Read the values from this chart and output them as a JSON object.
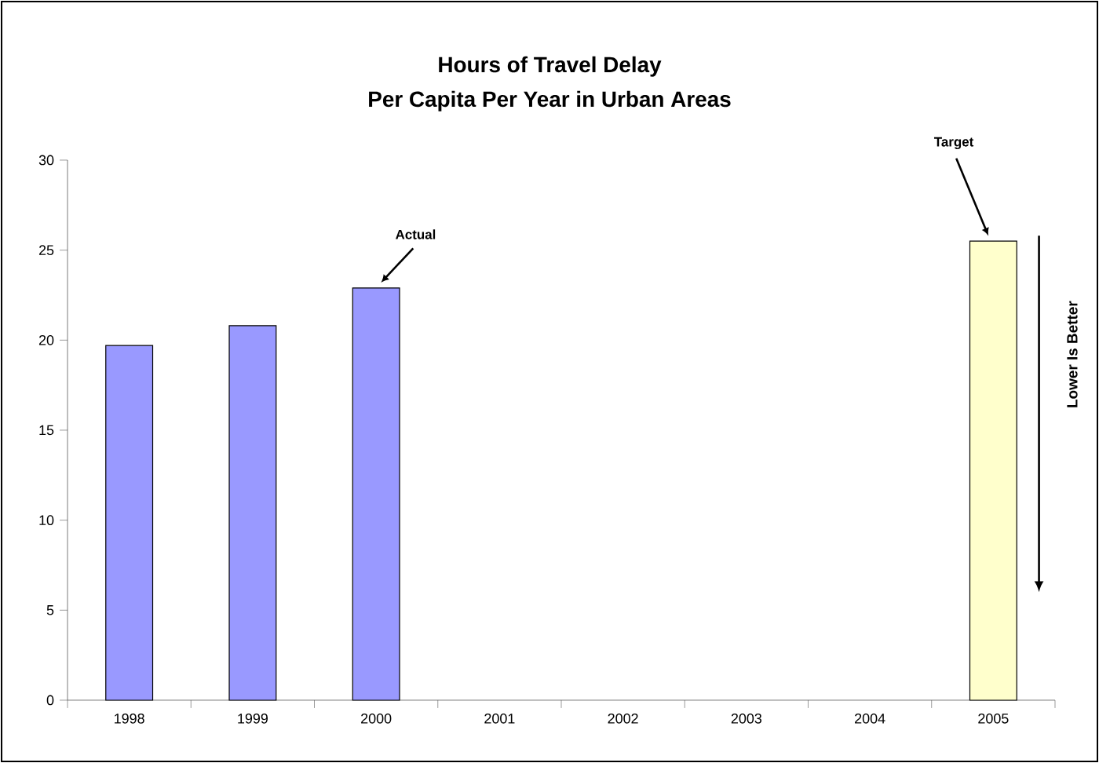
{
  "chart_data": {
    "type": "bar",
    "title": "Hours of Travel Delay",
    "subtitle": "Per Capita Per Year in Urban Areas",
    "categories": [
      "1998",
      "1999",
      "2000",
      "2001",
      "2002",
      "2003",
      "2004",
      "2005"
    ],
    "values": [
      19.7,
      20.8,
      22.9,
      null,
      null,
      null,
      null,
      25.5
    ],
    "colors": [
      "#9999ff",
      "#9999ff",
      "#9999ff",
      null,
      null,
      null,
      null,
      "#ffffcc"
    ],
    "ylim": [
      0,
      30
    ],
    "yticks": [
      0,
      5,
      10,
      15,
      20,
      25,
      30
    ],
    "grid": false,
    "annotations": [
      "Actual",
      "Target",
      "Lower Is Better"
    ]
  }
}
